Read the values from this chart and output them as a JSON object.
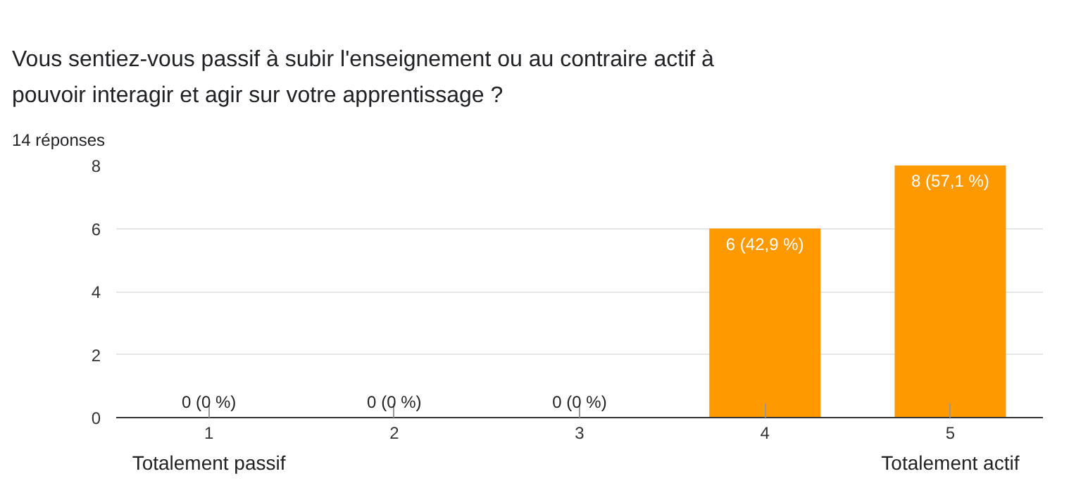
{
  "chart_data": {
    "type": "bar",
    "title": "Vous sentiez-vous passif à subir l'enseignement ou au contraire actif à pouvoir interagir et agir sur votre apprentissage ?",
    "subtitle": "14 réponses",
    "categories": [
      "1",
      "2",
      "3",
      "4",
      "5"
    ],
    "values": [
      0,
      0,
      0,
      6,
      8
    ],
    "color": "#ff9900",
    "value_labels": [
      "0 (0 %)",
      "0 (0 %)",
      "0 (0 %)",
      "6 (42,9 %)",
      "8 (57,1 %)"
    ],
    "ylim": [
      0,
      8
    ],
    "yticks": [
      0,
      2,
      4,
      6,
      8
    ],
    "grid": "y",
    "annotations": [
      "Totalement passif",
      "Totalement actif"
    ]
  }
}
